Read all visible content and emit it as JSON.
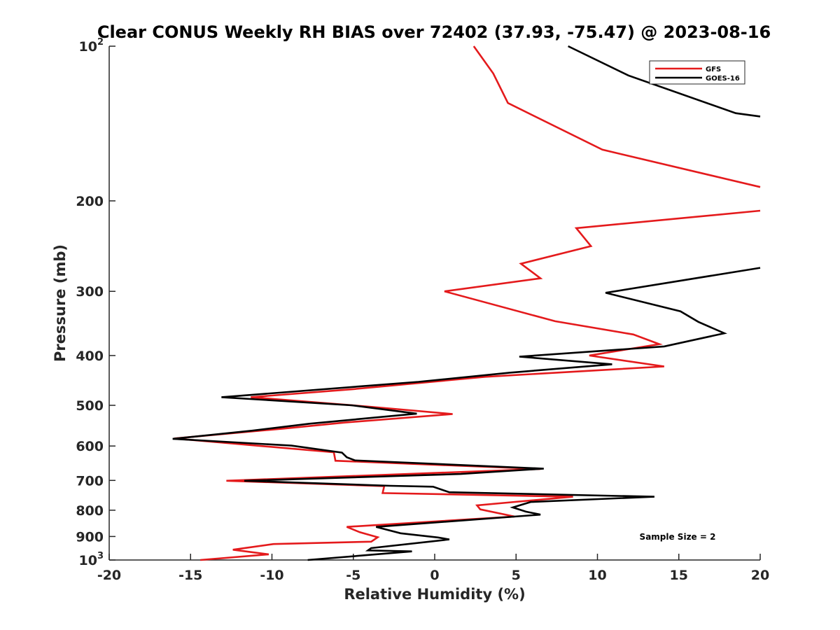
{
  "chart_data": {
    "type": "line",
    "title": "Clear CONUS Weekly RH BIAS over 72402 (37.93, -75.47) @ 2023-08-16",
    "xlabel": "Relative Humidity (%)",
    "ylabel": "Pressure (mb)",
    "xlim": [
      -20,
      20
    ],
    "ylim": [
      100,
      1000
    ],
    "yscale": "log",
    "y_reversed": true,
    "grid": false,
    "legend_position": "top-right",
    "x_ticks": [
      {
        "value": -20,
        "label": "-20"
      },
      {
        "value": -15,
        "label": "-15"
      },
      {
        "value": -10,
        "label": "-10"
      },
      {
        "value": -5,
        "label": "-5"
      },
      {
        "value": 0,
        "label": "0"
      },
      {
        "value": 5,
        "label": "5"
      },
      {
        "value": 10,
        "label": "10"
      },
      {
        "value": 15,
        "label": "15"
      },
      {
        "value": 20,
        "label": "20"
      }
    ],
    "y_ticks": [
      {
        "value": 100,
        "label": "10",
        "sup": "2"
      },
      {
        "value": 200,
        "label": "200"
      },
      {
        "value": 300,
        "label": "300"
      },
      {
        "value": 400,
        "label": "400"
      },
      {
        "value": 500,
        "label": "500"
      },
      {
        "value": 600,
        "label": "600"
      },
      {
        "value": 700,
        "label": "700"
      },
      {
        "value": 800,
        "label": "800"
      },
      {
        "value": 900,
        "label": "900"
      },
      {
        "value": 1000,
        "label": "10",
        "sup": "3"
      }
    ],
    "series": [
      {
        "name": "GFS",
        "color": "#e41a1c",
        "points": [
          {
            "x": 2.4,
            "p": 100
          },
          {
            "x": 3.6,
            "p": 113
          },
          {
            "x": 4.5,
            "p": 129
          },
          {
            "x": 10.3,
            "p": 159
          },
          {
            "x": 20,
            "p": 188
          },
          {
            "x": 20,
            "p": 209
          },
          {
            "x": 8.7,
            "p": 226
          },
          {
            "x": 9.6,
            "p": 245
          },
          {
            "x": 5.3,
            "p": 265
          },
          {
            "x": 6.5,
            "p": 283
          },
          {
            "x": 0.6,
            "p": 300
          },
          {
            "x": 7.4,
            "p": 343
          },
          {
            "x": 12.2,
            "p": 364
          },
          {
            "x": 13.8,
            "p": 380
          },
          {
            "x": 9.5,
            "p": 400
          },
          {
            "x": 14.1,
            "p": 420
          },
          {
            "x": 3.1,
            "p": 440
          },
          {
            "x": -5.0,
            "p": 465
          },
          {
            "x": -11.3,
            "p": 482
          },
          {
            "x": -4.0,
            "p": 503
          },
          {
            "x": 1.1,
            "p": 520
          },
          {
            "x": -5.5,
            "p": 540
          },
          {
            "x": -9.3,
            "p": 555
          },
          {
            "x": -16.0,
            "p": 580
          },
          {
            "x": -6.2,
            "p": 617
          },
          {
            "x": -6.1,
            "p": 641
          },
          {
            "x": 6.5,
            "p": 665
          },
          {
            "x": -12.8,
            "p": 701
          },
          {
            "x": -3.1,
            "p": 718
          },
          {
            "x": -3.2,
            "p": 741
          },
          {
            "x": 8.5,
            "p": 753
          },
          {
            "x": 4.7,
            "p": 772
          },
          {
            "x": 2.6,
            "p": 783
          },
          {
            "x": 2.8,
            "p": 797
          },
          {
            "x": 4.9,
            "p": 823
          },
          {
            "x": -5.4,
            "p": 862
          },
          {
            "x": -4.6,
            "p": 883
          },
          {
            "x": -3.5,
            "p": 903
          },
          {
            "x": -3.9,
            "p": 921
          },
          {
            "x": -9.9,
            "p": 931
          },
          {
            "x": -12.4,
            "p": 955
          },
          {
            "x": -10.2,
            "p": 975
          },
          {
            "x": -14.4,
            "p": 1000
          }
        ]
      },
      {
        "name": "GOES-16",
        "color": "#000000",
        "points": [
          {
            "x": 8.2,
            "p": 100
          },
          {
            "x": 11.9,
            "p": 114
          },
          {
            "x": 18.5,
            "p": 135
          },
          {
            "x": 20,
            "p": 137
          },
          {
            "x": 20,
            "p": 270
          },
          {
            "x": 10.5,
            "p": 302
          },
          {
            "x": 15.1,
            "p": 328
          },
          {
            "x": 16.2,
            "p": 344
          },
          {
            "x": 17.8,
            "p": 362
          },
          {
            "x": 14.1,
            "p": 384
          },
          {
            "x": 5.2,
            "p": 402
          },
          {
            "x": 10.9,
            "p": 416
          },
          {
            "x": 4.6,
            "p": 432
          },
          {
            "x": -1.0,
            "p": 450
          },
          {
            "x": -13.1,
            "p": 482
          },
          {
            "x": -5.1,
            "p": 500
          },
          {
            "x": -1.1,
            "p": 519
          },
          {
            "x": -7.7,
            "p": 543
          },
          {
            "x": -11.2,
            "p": 560
          },
          {
            "x": -16.1,
            "p": 581
          },
          {
            "x": -8.8,
            "p": 599
          },
          {
            "x": -5.7,
            "p": 618
          },
          {
            "x": -5.4,
            "p": 631
          },
          {
            "x": -4.9,
            "p": 640
          },
          {
            "x": 6.7,
            "p": 664
          },
          {
            "x": 1.6,
            "p": 680
          },
          {
            "x": -11.7,
            "p": 701
          },
          {
            "x": -2.7,
            "p": 717
          },
          {
            "x": -0.1,
            "p": 720
          },
          {
            "x": 0.9,
            "p": 738
          },
          {
            "x": 13.5,
            "p": 753
          },
          {
            "x": 5.9,
            "p": 771
          },
          {
            "x": 4.8,
            "p": 790
          },
          {
            "x": 5.6,
            "p": 805
          },
          {
            "x": 6.5,
            "p": 816
          },
          {
            "x": -3.6,
            "p": 862
          },
          {
            "x": -2.1,
            "p": 887
          },
          {
            "x": 0.2,
            "p": 904
          },
          {
            "x": 0.9,
            "p": 912
          },
          {
            "x": -3.9,
            "p": 948
          },
          {
            "x": -4.1,
            "p": 958
          },
          {
            "x": -1.4,
            "p": 962
          },
          {
            "x": -7.8,
            "p": 1000
          }
        ]
      }
    ],
    "annotation": "Sample Size = 2"
  }
}
